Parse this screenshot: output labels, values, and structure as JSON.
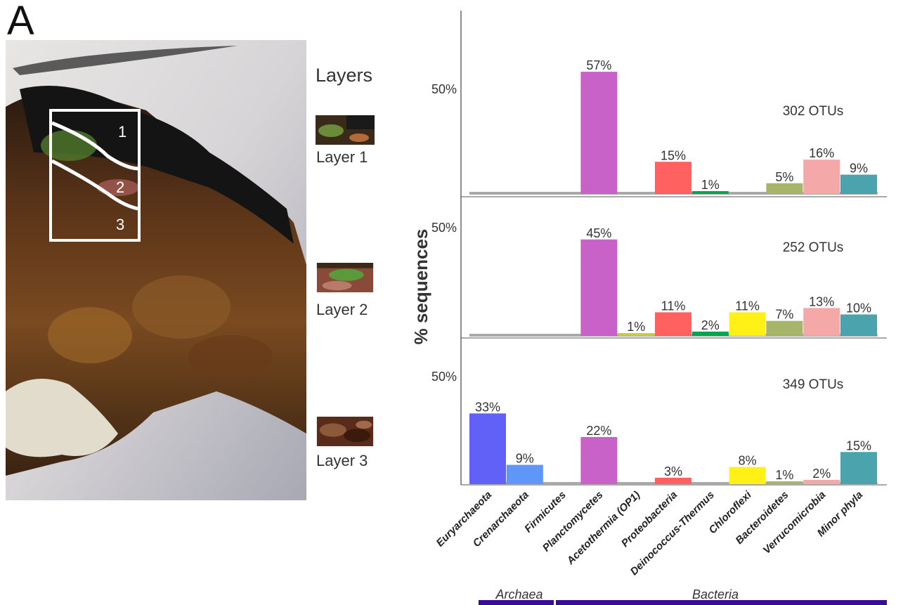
{
  "figure": {
    "panel_label": "A",
    "layers_title": "Layers",
    "photo_markers": [
      "1",
      "2",
      "3"
    ],
    "layers": [
      {
        "label": "Layer 1",
        "colors": [
          "#3a2a1a",
          "#6b8a3a",
          "#1a1a1a",
          "#b56a3a"
        ]
      },
      {
        "label": "Layer 2",
        "colors": [
          "#8a4a3a",
          "#5a9a3a",
          "#b87a6a",
          "#3a2a1a"
        ]
      },
      {
        "label": "Layer 3",
        "colors": [
          "#5a2a1a",
          "#8a5a3a",
          "#3a1a0a",
          "#a06a4a"
        ]
      }
    ],
    "domains": [
      {
        "label": "Archaea",
        "color": "#3a0a9a"
      },
      {
        "label": "Bacteria",
        "color": "#3a0a9a"
      }
    ]
  },
  "chart_data": {
    "type": "bar",
    "ylabel": "% sequences",
    "ytick_label": "50%",
    "ylim": [
      0,
      60
    ],
    "categories": [
      "Euryarchaeota",
      "Crenarchaeota",
      "Firmicutes",
      "Planctomycetes",
      "Acetothermia (OP1)",
      "Proteobacteria",
      "Deinococcus-Thermus",
      "Chloroflexi",
      "Bacteroidetes",
      "Verrucomicrobia",
      "Minor phyla"
    ],
    "colors": [
      "#6161f8",
      "#5f96f8",
      "#b0b0b0",
      "#c862c8",
      "#cccc33",
      "#ff6161",
      "#00a550",
      "#fff016",
      "#a7b56b",
      "#f5a8a8",
      "#4ba3ad"
    ],
    "facets": [
      {
        "name": "Layer 1",
        "otus": "302 OTUs",
        "values": [
          null,
          null,
          null,
          57,
          null,
          15,
          1,
          null,
          5,
          16,
          9
        ],
        "labels": [
          "",
          "",
          "",
          "57%",
          "",
          "15%",
          "1%",
          "",
          "5%",
          "16%",
          "9%"
        ]
      },
      {
        "name": "Layer 2",
        "otus": "252 OTUs",
        "values": [
          null,
          null,
          null,
          45,
          1,
          11,
          2,
          11,
          7,
          13,
          10
        ],
        "labels": [
          "",
          "",
          "",
          "45%",
          "1%",
          "11%",
          "2%",
          "11%",
          "7%",
          "13%",
          "10%"
        ]
      },
      {
        "name": "Layer 3",
        "otus": "349 OTUs",
        "values": [
          33,
          9,
          null,
          22,
          null,
          3,
          null,
          8,
          1,
          2,
          15
        ],
        "labels": [
          "33%",
          "9%",
          "",
          "22%",
          "",
          "3%",
          "",
          "8%",
          "1%",
          "2%",
          "15%"
        ]
      }
    ]
  }
}
